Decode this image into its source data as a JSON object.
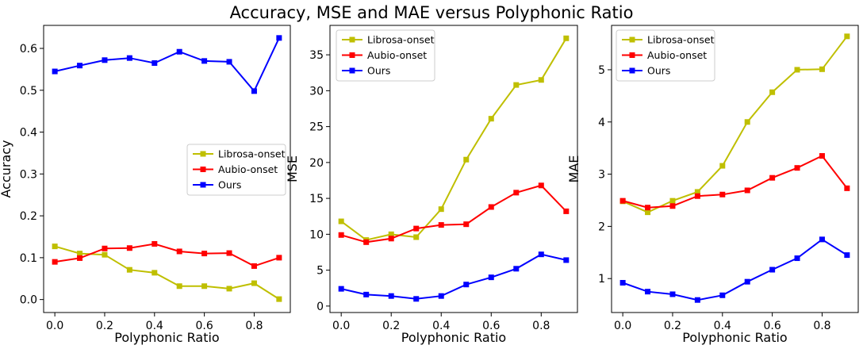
{
  "figure_title": "Accuracy, MSE and MAE versus Polyphonic Ratio",
  "colors": {
    "Librosa-onset": "#bfbf00",
    "Aubio-onset": "#ff0000",
    "Ours": "#0000ff"
  },
  "chart_data": [
    {
      "type": "line",
      "title": "",
      "xlabel": "Polyphonic Ratio",
      "ylabel": "Accuracy",
      "x": [
        0.0,
        0.1,
        0.2,
        0.3,
        0.4,
        0.5,
        0.6,
        0.7,
        0.8,
        0.9
      ],
      "xlim": [
        -0.045,
        0.945
      ],
      "ylim": [
        -0.031,
        0.655
      ],
      "xticks": [
        0.0,
        0.2,
        0.4,
        0.6,
        0.8
      ],
      "xtick_labels": [
        "0.0",
        "0.2",
        "0.4",
        "0.6",
        "0.8"
      ],
      "yticks": [
        0.0,
        0.1,
        0.2,
        0.3,
        0.4,
        0.5,
        0.6
      ],
      "ytick_labels": [
        "0.0",
        "0.1",
        "0.2",
        "0.3",
        "0.4",
        "0.5",
        "0.6"
      ],
      "legend_position": "center-right",
      "grid": false,
      "series": [
        {
          "name": "Librosa-onset",
          "values": [
            0.127,
            0.11,
            0.107,
            0.071,
            0.064,
            0.032,
            0.032,
            0.026,
            0.039,
            0.001
          ]
        },
        {
          "name": "Aubio-onset",
          "values": [
            0.09,
            0.099,
            0.122,
            0.123,
            0.133,
            0.115,
            0.11,
            0.111,
            0.08,
            0.1
          ]
        },
        {
          "name": "Ours",
          "values": [
            0.545,
            0.559,
            0.572,
            0.577,
            0.565,
            0.592,
            0.57,
            0.568,
            0.498,
            0.625
          ]
        }
      ]
    },
    {
      "type": "line",
      "title": "",
      "xlabel": "Polyphonic Ratio",
      "ylabel": "MSE",
      "x": [
        0.0,
        0.1,
        0.2,
        0.3,
        0.4,
        0.5,
        0.6,
        0.7,
        0.8,
        0.9
      ],
      "xlim": [
        -0.045,
        0.945
      ],
      "ylim": [
        -0.9,
        39.1
      ],
      "xticks": [
        0.0,
        0.2,
        0.4,
        0.6,
        0.8
      ],
      "xtick_labels": [
        "0.0",
        "0.2",
        "0.4",
        "0.6",
        "0.8"
      ],
      "yticks": [
        0,
        5,
        10,
        15,
        20,
        25,
        30,
        35
      ],
      "ytick_labels": [
        "0",
        "5",
        "10",
        "15",
        "20",
        "25",
        "30",
        "35"
      ],
      "legend_position": "upper-left",
      "grid": false,
      "series": [
        {
          "name": "Librosa-onset",
          "values": [
            11.8,
            9.2,
            10.0,
            9.6,
            13.5,
            20.4,
            26.1,
            30.8,
            31.5,
            37.3
          ]
        },
        {
          "name": "Aubio-onset",
          "values": [
            9.9,
            8.9,
            9.4,
            10.8,
            11.3,
            11.4,
            13.8,
            15.8,
            16.8,
            13.2
          ]
        },
        {
          "name": "Ours",
          "values": [
            2.4,
            1.6,
            1.4,
            1.0,
            1.4,
            3.0,
            4.0,
            5.2,
            7.2,
            6.4
          ]
        }
      ]
    },
    {
      "type": "line",
      "title": "",
      "xlabel": "Polyphonic Ratio",
      "ylabel": "MAE",
      "x": [
        0.0,
        0.1,
        0.2,
        0.3,
        0.4,
        0.5,
        0.6,
        0.7,
        0.8,
        0.9
      ],
      "xlim": [
        -0.045,
        0.945
      ],
      "ylim": [
        0.35,
        5.85
      ],
      "xticks": [
        0.0,
        0.2,
        0.4,
        0.6,
        0.8
      ],
      "xtick_labels": [
        "0.0",
        "0.2",
        "0.4",
        "0.6",
        "0.8"
      ],
      "yticks": [
        1,
        2,
        3,
        4,
        5
      ],
      "ytick_labels": [
        "1",
        "2",
        "3",
        "4",
        "5"
      ],
      "legend_position": "upper-left",
      "grid": false,
      "series": [
        {
          "name": "Librosa-onset",
          "values": [
            2.48,
            2.27,
            2.49,
            2.66,
            3.16,
            4.0,
            4.57,
            5.0,
            5.01,
            5.64
          ]
        },
        {
          "name": "Aubio-onset",
          "values": [
            2.49,
            2.36,
            2.39,
            2.58,
            2.61,
            2.69,
            2.93,
            3.12,
            3.35,
            2.73
          ]
        },
        {
          "name": "Ours",
          "values": [
            0.92,
            0.75,
            0.7,
            0.59,
            0.68,
            0.94,
            1.17,
            1.39,
            1.75,
            1.45
          ]
        }
      ]
    }
  ]
}
